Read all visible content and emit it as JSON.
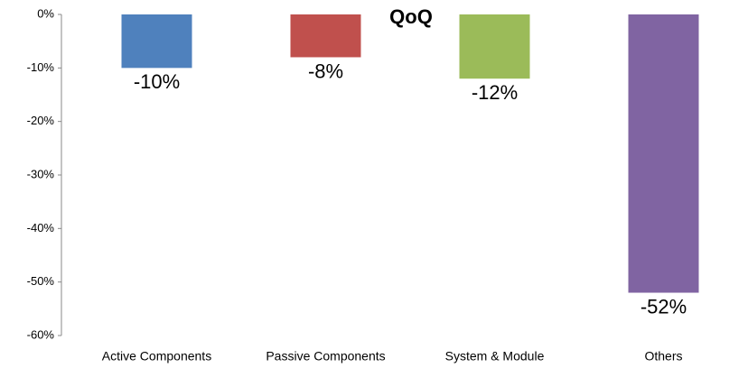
{
  "chart_data": {
    "type": "bar",
    "title": "QoQ",
    "categories": [
      "Active Components",
      "Passive Components",
      "System & Module",
      "Others"
    ],
    "values": [
      -10,
      -8,
      -12,
      -52
    ],
    "value_labels": [
      "-10%",
      "-8%",
      "-12%",
      "-52%"
    ],
    "colors": [
      "#4f81bd",
      "#c0504d",
      "#9bbb59",
      "#8064a2"
    ],
    "ylim": [
      -60,
      0
    ],
    "yticks": [
      {
        "value": 0,
        "label": "0%"
      },
      {
        "value": -10,
        "label": "-10%"
      },
      {
        "value": -20,
        "label": "-20%"
      },
      {
        "value": -30,
        "label": "-30%"
      },
      {
        "value": -40,
        "label": "-40%"
      },
      {
        "value": -50,
        "label": "-50%"
      },
      {
        "value": -60,
        "label": "-60%"
      }
    ],
    "grid": false
  }
}
